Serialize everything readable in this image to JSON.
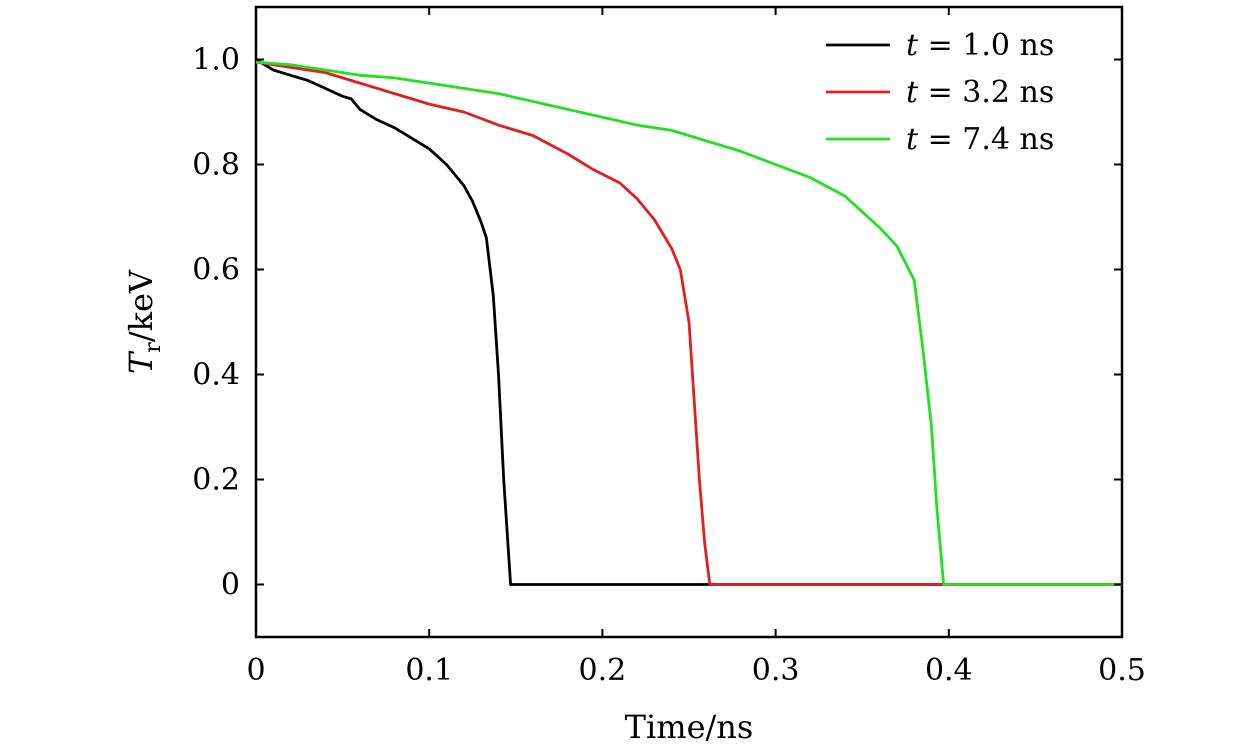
{
  "chart_data": {
    "type": "line",
    "xlabel": "Time/ns",
    "ylabel_main": "T",
    "ylabel_sub": "r",
    "ylabel_rest": "/keV",
    "xlim": [
      0,
      0.5
    ],
    "ylim": [
      -0.1,
      1.1
    ],
    "x_ticks": [
      0,
      0.1,
      0.2,
      0.3,
      0.4,
      0.5
    ],
    "x_tick_labels": [
      "0",
      "0.1",
      "0.2",
      "0.3",
      "0.4",
      "0.5"
    ],
    "y_ticks": [
      0,
      0.2,
      0.4,
      0.6,
      0.8,
      1.0
    ],
    "y_tick_labels": [
      "0",
      "0.2",
      "0.4",
      "0.6",
      "0.8",
      "1.0"
    ],
    "grid": false,
    "legend_position": "top-right",
    "series": [
      {
        "name": "t = 1.0 ns",
        "legend_var": "t",
        "legend_rest": " = 1.0 ns",
        "color": "#000000",
        "x": [
          0,
          0.01,
          0.02,
          0.03,
          0.04,
          0.05,
          0.055,
          0.06,
          0.07,
          0.08,
          0.09,
          0.1,
          0.11,
          0.12,
          0.125,
          0.13,
          0.133,
          0.137,
          0.14,
          0.143,
          0.147,
          0.15,
          0.2,
          0.3,
          0.4,
          0.5
        ],
        "y": [
          1.0,
          0.98,
          0.97,
          0.96,
          0.945,
          0.93,
          0.925,
          0.905,
          0.885,
          0.87,
          0.85,
          0.83,
          0.8,
          0.76,
          0.73,
          0.69,
          0.66,
          0.55,
          0.4,
          0.2,
          0.0,
          0.0,
          0.0,
          0.0,
          0.0,
          0.0
        ]
      },
      {
        "name": "t = 3.2 ns",
        "legend_var": "t",
        "legend_rest": " = 3.2 ns",
        "color": "#e02020",
        "x": [
          0,
          0.02,
          0.04,
          0.06,
          0.08,
          0.1,
          0.12,
          0.14,
          0.16,
          0.18,
          0.195,
          0.21,
          0.22,
          0.23,
          0.24,
          0.245,
          0.25,
          0.253,
          0.256,
          0.259,
          0.262,
          0.3,
          0.4,
          0.5
        ],
        "y": [
          0.995,
          0.985,
          0.975,
          0.955,
          0.935,
          0.915,
          0.9,
          0.875,
          0.855,
          0.82,
          0.79,
          0.765,
          0.735,
          0.695,
          0.64,
          0.6,
          0.5,
          0.35,
          0.2,
          0.08,
          0.0,
          0.0,
          0.0,
          0.0
        ]
      },
      {
        "name": "t = 7.4 ns",
        "legend_var": "t",
        "legend_rest": " = 7.4 ns",
        "color": "#22e022",
        "x": [
          0,
          0.02,
          0.04,
          0.06,
          0.08,
          0.1,
          0.12,
          0.14,
          0.16,
          0.18,
          0.2,
          0.22,
          0.24,
          0.26,
          0.28,
          0.3,
          0.32,
          0.34,
          0.35,
          0.36,
          0.37,
          0.38,
          0.385,
          0.39,
          0.393,
          0.397,
          0.4,
          0.5
        ],
        "y": [
          0.995,
          0.99,
          0.98,
          0.97,
          0.965,
          0.955,
          0.945,
          0.935,
          0.92,
          0.905,
          0.89,
          0.875,
          0.865,
          0.845,
          0.825,
          0.8,
          0.775,
          0.74,
          0.71,
          0.68,
          0.645,
          0.58,
          0.45,
          0.3,
          0.15,
          0.0,
          0.0,
          0.0
        ]
      }
    ]
  }
}
